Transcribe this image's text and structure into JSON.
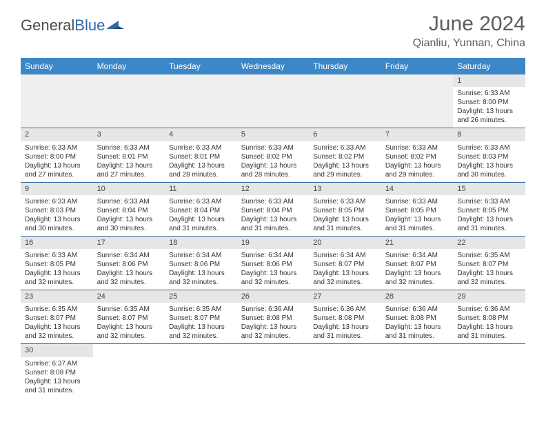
{
  "brand": {
    "part1": "General",
    "part2": "Blue"
  },
  "title": "June 2024",
  "location": "Qianliu, Yunnan, China",
  "colors": {
    "header_bg": "#3c87c7",
    "header_text": "#ffffff",
    "row_stripe": "#e6e6e6",
    "border": "#2f6aa8",
    "text": "#333333",
    "title_text": "#5c5c5c"
  },
  "daysOfWeek": [
    "Sunday",
    "Monday",
    "Tuesday",
    "Wednesday",
    "Thursday",
    "Friday",
    "Saturday"
  ],
  "weeks": [
    [
      null,
      null,
      null,
      null,
      null,
      null,
      {
        "n": "1",
        "sr": "6:33 AM",
        "ss": "8:00 PM",
        "dl": "13 hours and 26 minutes."
      }
    ],
    [
      {
        "n": "2",
        "sr": "6:33 AM",
        "ss": "8:00 PM",
        "dl": "13 hours and 27 minutes."
      },
      {
        "n": "3",
        "sr": "6:33 AM",
        "ss": "8:01 PM",
        "dl": "13 hours and 27 minutes."
      },
      {
        "n": "4",
        "sr": "6:33 AM",
        "ss": "8:01 PM",
        "dl": "13 hours and 28 minutes."
      },
      {
        "n": "5",
        "sr": "6:33 AM",
        "ss": "8:02 PM",
        "dl": "13 hours and 28 minutes."
      },
      {
        "n": "6",
        "sr": "6:33 AM",
        "ss": "8:02 PM",
        "dl": "13 hours and 29 minutes."
      },
      {
        "n": "7",
        "sr": "6:33 AM",
        "ss": "8:02 PM",
        "dl": "13 hours and 29 minutes."
      },
      {
        "n": "8",
        "sr": "6:33 AM",
        "ss": "8:03 PM",
        "dl": "13 hours and 30 minutes."
      }
    ],
    [
      {
        "n": "9",
        "sr": "6:33 AM",
        "ss": "8:03 PM",
        "dl": "13 hours and 30 minutes."
      },
      {
        "n": "10",
        "sr": "6:33 AM",
        "ss": "8:04 PM",
        "dl": "13 hours and 30 minutes."
      },
      {
        "n": "11",
        "sr": "6:33 AM",
        "ss": "8:04 PM",
        "dl": "13 hours and 31 minutes."
      },
      {
        "n": "12",
        "sr": "6:33 AM",
        "ss": "8:04 PM",
        "dl": "13 hours and 31 minutes."
      },
      {
        "n": "13",
        "sr": "6:33 AM",
        "ss": "8:05 PM",
        "dl": "13 hours and 31 minutes."
      },
      {
        "n": "14",
        "sr": "6:33 AM",
        "ss": "8:05 PM",
        "dl": "13 hours and 31 minutes."
      },
      {
        "n": "15",
        "sr": "6:33 AM",
        "ss": "8:05 PM",
        "dl": "13 hours and 31 minutes."
      }
    ],
    [
      {
        "n": "16",
        "sr": "6:33 AM",
        "ss": "8:05 PM",
        "dl": "13 hours and 32 minutes."
      },
      {
        "n": "17",
        "sr": "6:34 AM",
        "ss": "8:06 PM",
        "dl": "13 hours and 32 minutes."
      },
      {
        "n": "18",
        "sr": "6:34 AM",
        "ss": "8:06 PM",
        "dl": "13 hours and 32 minutes."
      },
      {
        "n": "19",
        "sr": "6:34 AM",
        "ss": "8:06 PM",
        "dl": "13 hours and 32 minutes."
      },
      {
        "n": "20",
        "sr": "6:34 AM",
        "ss": "8:07 PM",
        "dl": "13 hours and 32 minutes."
      },
      {
        "n": "21",
        "sr": "6:34 AM",
        "ss": "8:07 PM",
        "dl": "13 hours and 32 minutes."
      },
      {
        "n": "22",
        "sr": "6:35 AM",
        "ss": "8:07 PM",
        "dl": "13 hours and 32 minutes."
      }
    ],
    [
      {
        "n": "23",
        "sr": "6:35 AM",
        "ss": "8:07 PM",
        "dl": "13 hours and 32 minutes."
      },
      {
        "n": "24",
        "sr": "6:35 AM",
        "ss": "8:07 PM",
        "dl": "13 hours and 32 minutes."
      },
      {
        "n": "25",
        "sr": "6:35 AM",
        "ss": "8:07 PM",
        "dl": "13 hours and 32 minutes."
      },
      {
        "n": "26",
        "sr": "6:36 AM",
        "ss": "8:08 PM",
        "dl": "13 hours and 32 minutes."
      },
      {
        "n": "27",
        "sr": "6:36 AM",
        "ss": "8:08 PM",
        "dl": "13 hours and 31 minutes."
      },
      {
        "n": "28",
        "sr": "6:36 AM",
        "ss": "8:08 PM",
        "dl": "13 hours and 31 minutes."
      },
      {
        "n": "29",
        "sr": "6:36 AM",
        "ss": "8:08 PM",
        "dl": "13 hours and 31 minutes."
      }
    ],
    [
      {
        "n": "30",
        "sr": "6:37 AM",
        "ss": "8:08 PM",
        "dl": "13 hours and 31 minutes."
      },
      null,
      null,
      null,
      null,
      null,
      null
    ]
  ],
  "labels": {
    "sunrise": "Sunrise:",
    "sunset": "Sunset:",
    "daylight": "Daylight:"
  }
}
